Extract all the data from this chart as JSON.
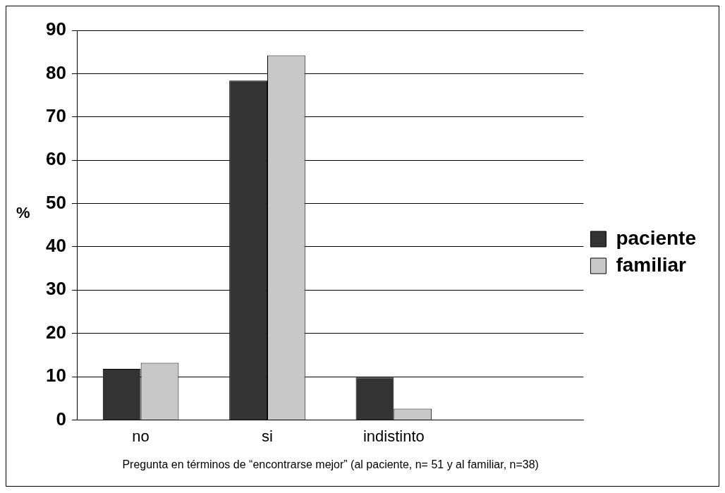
{
  "chart_data": {
    "type": "bar",
    "categories": [
      "no",
      "si",
      "indistinto",
      null
    ],
    "series": [
      {
        "name": "paciente",
        "color": "#333333",
        "values": [
          11.8,
          78.4,
          9.8,
          null
        ]
      },
      {
        "name": "familiar",
        "color": "#c8c8c8",
        "values": [
          13.2,
          84.2,
          2.6,
          null
        ]
      }
    ],
    "ylabel": "%",
    "xlabel": "Pregunta en términos de “encontrarse mejor” (al paciente, n= 51 y al familiar, n=38)",
    "ylim": [
      0,
      90
    ],
    "yticks": [
      0,
      10,
      20,
      30,
      40,
      50,
      60,
      70,
      80,
      90
    ],
    "grid": "y",
    "legend": "right"
  }
}
